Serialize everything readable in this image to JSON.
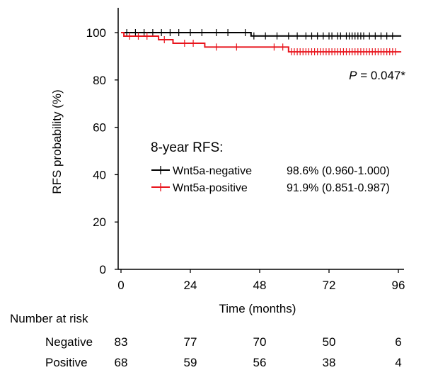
{
  "colors": {
    "negative": "#000000",
    "positive": "#e8141c"
  },
  "chart_data": {
    "type": "line",
    "title": "",
    "xlabel": "Time (months)",
    "ylabel": "RFS probability (%)",
    "xlim": [
      0,
      97
    ],
    "ylim": [
      0,
      100
    ],
    "x_ticks": [
      0,
      24,
      48,
      72,
      96
    ],
    "y_ticks": [
      0,
      20,
      40,
      60,
      80,
      100
    ],
    "annotation": {
      "italic": "P",
      "rest": " = 0.047*"
    },
    "legend": {
      "title": "8-year RFS:",
      "position": "center",
      "entries": [
        {
          "name": "Wnt5a-negative",
          "value": "98.6% (0.960-1.000)"
        },
        {
          "name": "Wnt5a-positive",
          "value": "91.9% (0.851-0.987)"
        }
      ]
    },
    "series": [
      {
        "name": "Wnt5a-negative",
        "color": "#000000",
        "x": [
          0,
          45,
          45,
          97
        ],
        "y": [
          100,
          100,
          98.6,
          98.6
        ],
        "censor_x": [
          2,
          5,
          8,
          11,
          14,
          17,
          20,
          24,
          28,
          33,
          37,
          43,
          46,
          50,
          54,
          58,
          61,
          64,
          66,
          68,
          70,
          72,
          73,
          75,
          76,
          78,
          79,
          80,
          81,
          82,
          83,
          84,
          86,
          88,
          90,
          92,
          94
        ]
      },
      {
        "name": "Wnt5a-positive",
        "color": "#e8141c",
        "x": [
          0,
          1,
          1,
          13,
          13,
          18,
          18,
          29,
          29,
          58,
          58,
          97
        ],
        "y": [
          100,
          100,
          98.5,
          98.5,
          97,
          97,
          95.5,
          95.5,
          93.9,
          93.9,
          91.9,
          91.9
        ],
        "censor_x": [
          3,
          6,
          9,
          15,
          22,
          25,
          33,
          40,
          53,
          56,
          59,
          60,
          61,
          62,
          63,
          64,
          65,
          66,
          67,
          68,
          69,
          70,
          71,
          72,
          73,
          74,
          75,
          76,
          77,
          78,
          79,
          80,
          81,
          82,
          83,
          84,
          85,
          86,
          87,
          88,
          89,
          90,
          91,
          92,
          93,
          94,
          95
        ]
      }
    ],
    "risk_table": {
      "title": "Number at risk",
      "timepoints": [
        0,
        24,
        48,
        72,
        96
      ],
      "rows": [
        {
          "label": "Negative",
          "values": [
            "83",
            "77",
            "70",
            "50",
            "6"
          ]
        },
        {
          "label": "Positive",
          "values": [
            "68",
            "59",
            "56",
            "38",
            "4"
          ]
        }
      ]
    }
  }
}
